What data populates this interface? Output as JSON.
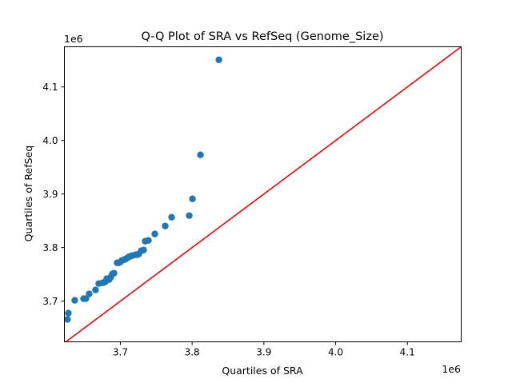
{
  "chart_data": {
    "type": "scatter",
    "title": "Q-Q Plot of SRA vs RefSeq (Genome_Size)",
    "xlabel": "Quartiles of SRA",
    "ylabel": "Quartiles of RefSeq",
    "x_offset_label": "1e6",
    "y_offset_label": "1e6",
    "xlim": [
      3.622,
      4.175
    ],
    "ylim": [
      3.624,
      4.175
    ],
    "xticks": [
      3.7,
      3.8,
      3.9,
      4.0,
      4.1
    ],
    "xtick_labels": [
      "3.7",
      "3.8",
      "3.9",
      "4.0",
      "4.1"
    ],
    "yticks": [
      3.7,
      3.8,
      3.9,
      4.0,
      4.1
    ],
    "ytick_labels": [
      "3.7",
      "3.8",
      "3.9",
      "4.0",
      "4.1"
    ],
    "grid": false,
    "point_color": "#1f77b4",
    "reference_line": {
      "type": "y=x",
      "color": "#ff0000"
    },
    "points": [
      [
        3.6263,
        3.6657
      ],
      [
        3.6275,
        3.6776
      ],
      [
        3.6364,
        3.7015
      ],
      [
        3.6487,
        3.7045
      ],
      [
        3.652,
        3.7045
      ],
      [
        3.6565,
        3.7134
      ],
      [
        3.6654,
        3.7209
      ],
      [
        3.6699,
        3.7328
      ],
      [
        3.6754,
        3.7343
      ],
      [
        3.6788,
        3.7358
      ],
      [
        3.681,
        3.7418
      ],
      [
        3.6844,
        3.7403
      ],
      [
        3.6866,
        3.7448
      ],
      [
        3.6888,
        3.7507
      ],
      [
        3.6911,
        3.7522
      ],
      [
        3.6955,
        3.7716
      ],
      [
        3.6978,
        3.7716
      ],
      [
        3.7,
        3.7731
      ],
      [
        3.7022,
        3.7761
      ],
      [
        3.7056,
        3.7776
      ],
      [
        3.7078,
        3.7791
      ],
      [
        3.7112,
        3.7821
      ],
      [
        3.7134,
        3.7836
      ],
      [
        3.7167,
        3.7851
      ],
      [
        3.7212,
        3.7866
      ],
      [
        3.7234,
        3.7866
      ],
      [
        3.7257,
        3.7881
      ],
      [
        3.729,
        3.794
      ],
      [
        3.7324,
        3.7955
      ],
      [
        3.7346,
        3.8119
      ],
      [
        3.7391,
        3.8134
      ],
      [
        3.748,
        3.8254
      ],
      [
        3.7625,
        3.8403
      ],
      [
        3.7714,
        3.8567
      ],
      [
        3.796,
        3.8597
      ],
      [
        3.8004,
        3.891
      ],
      [
        3.8116,
        3.9731
      ],
      [
        3.8373,
        4.1507
      ]
    ]
  }
}
